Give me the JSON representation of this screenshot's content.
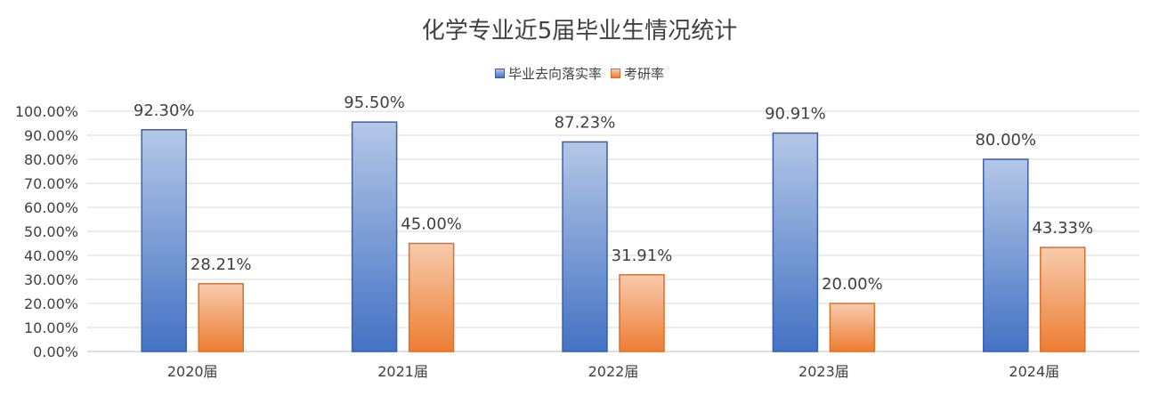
{
  "chart_data": {
    "type": "bar",
    "title": "化学专业近5届毕业生情况统计",
    "categories": [
      "2020届",
      "2021届",
      "2022届",
      "2023届",
      "2024届"
    ],
    "series": [
      {
        "name": "毕业去向落实率",
        "values": [
          92.3,
          95.5,
          87.23,
          90.91,
          80.0
        ],
        "labels": [
          "92.30%",
          "95.50%",
          "87.23%",
          "90.91%",
          "80.00%"
        ],
        "color": "#4472c4",
        "color_light": "#b4c7e7"
      },
      {
        "name": "考研率",
        "values": [
          28.21,
          45.0,
          31.91,
          20.0,
          43.33
        ],
        "labels": [
          "28.21%",
          "45.00%",
          "31.91%",
          "20.00%",
          "43.33%"
        ],
        "color": "#ed7d31",
        "color_light": "#f8cbad"
      }
    ],
    "y_ticks": [
      "0.00%",
      "10.00%",
      "20.00%",
      "30.00%",
      "40.00%",
      "50.00%",
      "60.00%",
      "70.00%",
      "80.00%",
      "90.00%",
      "100.00%"
    ],
    "ylim": [
      0,
      100
    ],
    "grid": true,
    "legend_position": "top-center",
    "xlabel": "",
    "ylabel": ""
  }
}
